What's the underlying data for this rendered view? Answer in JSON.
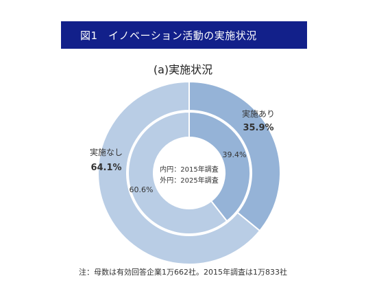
{
  "header": {
    "title": "図1　イノベーション活動の実施状況"
  },
  "chart_data": {
    "type": "pie",
    "title": "(a)実施状況",
    "center_legend": [
      "内円：2015年調査",
      "外円：2025年調査"
    ],
    "categories": [
      "実施あり",
      "実施なし"
    ],
    "series": [
      {
        "name": "外円：2025年調査",
        "values": [
          35.9,
          64.1
        ],
        "labels": [
          "35.9%",
          "64.1%"
        ]
      },
      {
        "name": "内円：2015年調査",
        "values": [
          39.4,
          60.6
        ],
        "labels": [
          "39.4%",
          "60.6%"
        ]
      }
    ],
    "colors": {
      "outer_yes": "#95b3d7",
      "outer_no": "#b9cde5",
      "inner_yes": "#95b3d7",
      "inner_no": "#b9cde5"
    }
  },
  "footnote": "注：母数は有効回答企業1万662社。2015年調査は1万833社"
}
